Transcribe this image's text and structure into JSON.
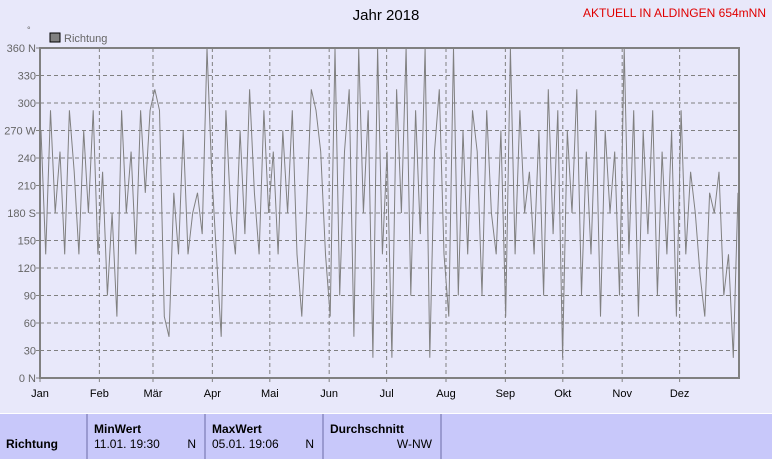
{
  "header": {
    "title": "Jahr 2018",
    "aktuell": "AKTUELL IN ALDINGEN 654mNN"
  },
  "chart_data": {
    "type": "line",
    "title": "Jahr 2018",
    "unit_label": "°",
    "legend": {
      "name": "Richtung",
      "placement": "top-left",
      "color": "#808080"
    },
    "ylim": [
      0,
      360
    ],
    "yticks": [
      {
        "v": 0,
        "l": "0 N"
      },
      {
        "v": 30,
        "l": "30"
      },
      {
        "v": 60,
        "l": "60"
      },
      {
        "v": 90,
        "l": "90"
      },
      {
        "v": 120,
        "l": "120"
      },
      {
        "v": 150,
        "l": "150"
      },
      {
        "v": 180,
        "l": "180 S"
      },
      {
        "v": 210,
        "l": "210"
      },
      {
        "v": 240,
        "l": "240"
      },
      {
        "v": 270,
        "l": "270 W"
      },
      {
        "v": 300,
        "l": "300"
      },
      {
        "v": 330,
        "l": "330"
      },
      {
        "v": 360,
        "l": "360 N"
      }
    ],
    "xticks": [
      "Jan",
      "Feb",
      "Mär",
      "Apr",
      "Mai",
      "Jun",
      "Jul",
      "Aug",
      "Sep",
      "Okt",
      "Nov",
      "Dez"
    ],
    "grid": true,
    "series": [
      {
        "name": "Richtung",
        "values": [
          270,
          135,
          292,
          180,
          247,
          135,
          292,
          225,
          135,
          270,
          180,
          292,
          135,
          225,
          90,
          180,
          67,
          292,
          180,
          247,
          135,
          292,
          202,
          292,
          315,
          292,
          67,
          45,
          202,
          135,
          270,
          135,
          180,
          202,
          157,
          360,
          225,
          135,
          45,
          292,
          180,
          135,
          270,
          157,
          315,
          202,
          135,
          292,
          180,
          247,
          135,
          270,
          180,
          292,
          135,
          67,
          180,
          315,
          292,
          247,
          135,
          67,
          360,
          90,
          247,
          315,
          45,
          360,
          180,
          292,
          22,
          360,
          135,
          247,
          22,
          315,
          180,
          360,
          90,
          292,
          157,
          360,
          22,
          247,
          315,
          135,
          67,
          360,
          90,
          270,
          135,
          292,
          247,
          90,
          292,
          180,
          135,
          270,
          67,
          360,
          135,
          292,
          180,
          225,
          135,
          270,
          90,
          315,
          157,
          292,
          22,
          270,
          180,
          315,
          90,
          247,
          135,
          292,
          67,
          270,
          180,
          247,
          90,
          360,
          135,
          292,
          67,
          270,
          157,
          292,
          90,
          247,
          135,
          270,
          67,
          292,
          135,
          225,
          180,
          112,
          67,
          202,
          180,
          225,
          90,
          135,
          22,
          202
        ]
      }
    ]
  },
  "table": {
    "row_label": "Richtung",
    "min_header": "MinWert",
    "min_value": "11.01.  19:30",
    "min_dir": "N",
    "max_header": "MaxWert",
    "max_value": "05.01.  19:06",
    "max_dir": "N",
    "avg_header": "Durchschnitt",
    "avg_value": "W-NW"
  }
}
